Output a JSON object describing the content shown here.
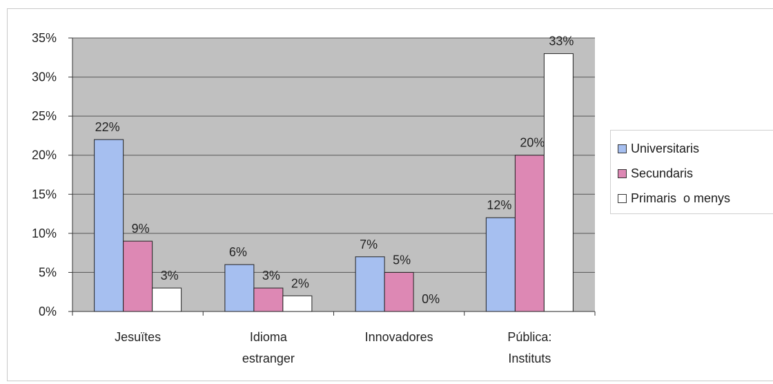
{
  "chart_data": {
    "type": "bar",
    "categories": [
      [
        "Jesuïtes"
      ],
      [
        "Idioma",
        "estranger"
      ],
      [
        "Innovadores"
      ],
      [
        "Pública:",
        "Instituts"
      ]
    ],
    "series": [
      {
        "name": "Universitaris",
        "color": "#a6bff0",
        "values": [
          22,
          6,
          7,
          12
        ],
        "labels": [
          "22%",
          "6%",
          "7%",
          "12%"
        ]
      },
      {
        "name": "Secundaris",
        "color": "#dd88b4",
        "values": [
          9,
          3,
          5,
          20
        ],
        "labels": [
          "9%",
          "3%",
          "5%",
          "20%"
        ]
      },
      {
        "name": "Primaris  o menys",
        "color": "#ffffff",
        "values": [
          3,
          2,
          0,
          33
        ],
        "labels": [
          "3%",
          "2%",
          "0%",
          "33%"
        ]
      }
    ],
    "yticks": [
      "0%",
      "5%",
      "10%",
      "15%",
      "20%",
      "25%",
      "30%",
      "35%"
    ],
    "ylim": [
      0,
      35
    ],
    "grid": true,
    "plot_background": "#c0c0c0",
    "legend_position": "right"
  }
}
